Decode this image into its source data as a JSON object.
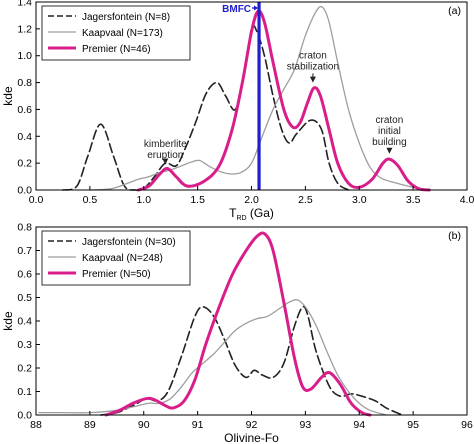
{
  "chart_data": [
    {
      "type": "line",
      "panel_label": "(a)",
      "xlabel_main": "T",
      "xlabel_sub": "RD",
      "xlabel_unit": " (Ga)",
      "ylabel": "kde",
      "xlim": [
        0.0,
        4.0
      ],
      "ylim": [
        0.0,
        1.4
      ],
      "xticks": [
        "0.0",
        "0.5",
        "1.0",
        "1.5",
        "2.0",
        "2.5",
        "3.0",
        "3.5",
        "4.0"
      ],
      "xtick_values": [
        0.0,
        0.5,
        1.0,
        1.5,
        2.0,
        2.5,
        3.0,
        3.5,
        4.0
      ],
      "yticks": [
        "0.0",
        "0.2",
        "0.4",
        "0.6",
        "0.8",
        "1.0",
        "1.2",
        "1.4"
      ],
      "ytick_values": [
        0.0,
        0.2,
        0.4,
        0.6,
        0.8,
        1.0,
        1.2,
        1.4
      ],
      "legend_position": "top-left",
      "series": [
        {
          "name": "Jagersfontein (N=8)",
          "style": "dashed",
          "color": "#222222",
          "points": [
            [
              0.25,
              0
            ],
            [
              0.38,
              0.03
            ],
            [
              0.48,
              0.25
            ],
            [
              0.6,
              0.49
            ],
            [
              0.72,
              0.25
            ],
            [
              0.82,
              0.03
            ],
            [
              0.92,
              0
            ],
            [
              1.0,
              0.01
            ],
            [
              1.1,
              0.1
            ],
            [
              1.2,
              0.2
            ],
            [
              1.3,
              0.18
            ],
            [
              1.38,
              0.3
            ],
            [
              1.48,
              0.5
            ],
            [
              1.58,
              0.72
            ],
            [
              1.68,
              0.8
            ],
            [
              1.76,
              0.7
            ],
            [
              1.85,
              0.6
            ],
            [
              1.93,
              0.85
            ],
            [
              2.0,
              1.2
            ],
            [
              2.05,
              1.18
            ],
            [
              2.12,
              1.0
            ],
            [
              2.2,
              0.7
            ],
            [
              2.28,
              0.45
            ],
            [
              2.35,
              0.35
            ],
            [
              2.42,
              0.42
            ],
            [
              2.55,
              0.52
            ],
            [
              2.65,
              0.45
            ],
            [
              2.72,
              0.2
            ],
            [
              2.8,
              0.05
            ],
            [
              2.9,
              0
            ]
          ]
        },
        {
          "name": "Kaapvaal (N=173)",
          "style": "solid",
          "color": "#9e9e9e",
          "points": [
            [
              0.5,
              0
            ],
            [
              0.7,
              0.01
            ],
            [
              0.85,
              0.05
            ],
            [
              0.95,
              0.08
            ],
            [
              1.05,
              0.1
            ],
            [
              1.15,
              0.13
            ],
            [
              1.25,
              0.15
            ],
            [
              1.35,
              0.18
            ],
            [
              1.45,
              0.21
            ],
            [
              1.52,
              0.22
            ],
            [
              1.6,
              0.18
            ],
            [
              1.7,
              0.14
            ],
            [
              1.8,
              0.12
            ],
            [
              1.9,
              0.13
            ],
            [
              2.0,
              0.2
            ],
            [
              2.1,
              0.4
            ],
            [
              2.2,
              0.6
            ],
            [
              2.3,
              0.75
            ],
            [
              2.4,
              0.9
            ],
            [
              2.5,
              1.15
            ],
            [
              2.6,
              1.33
            ],
            [
              2.66,
              1.36
            ],
            [
              2.72,
              1.25
            ],
            [
              2.8,
              0.95
            ],
            [
              2.9,
              0.6
            ],
            [
              3.0,
              0.35
            ],
            [
              3.1,
              0.17
            ],
            [
              3.2,
              0.09
            ],
            [
              3.35,
              0.05
            ],
            [
              3.5,
              0.02
            ],
            [
              3.65,
              0
            ]
          ]
        },
        {
          "name": "Premier (N=46)",
          "style": "solid-thick",
          "color": "#d91e8b",
          "points": [
            [
              0.95,
              0
            ],
            [
              1.05,
              0.03
            ],
            [
              1.15,
              0.12
            ],
            [
              1.22,
              0.16
            ],
            [
              1.3,
              0.1
            ],
            [
              1.4,
              0.03
            ],
            [
              1.55,
              0.06
            ],
            [
              1.7,
              0.18
            ],
            [
              1.82,
              0.45
            ],
            [
              1.92,
              0.82
            ],
            [
              2.0,
              1.18
            ],
            [
              2.06,
              1.33
            ],
            [
              2.12,
              1.25
            ],
            [
              2.2,
              0.95
            ],
            [
              2.3,
              0.6
            ],
            [
              2.38,
              0.47
            ],
            [
              2.45,
              0.5
            ],
            [
              2.52,
              0.65
            ],
            [
              2.58,
              0.76
            ],
            [
              2.64,
              0.7
            ],
            [
              2.72,
              0.45
            ],
            [
              2.8,
              0.2
            ],
            [
              2.9,
              0.05
            ],
            [
              3.0,
              0.02
            ],
            [
              3.12,
              0.08
            ],
            [
              3.22,
              0.2
            ],
            [
              3.28,
              0.23
            ],
            [
              3.36,
              0.18
            ],
            [
              3.45,
              0.07
            ],
            [
              3.55,
              0.01
            ],
            [
              3.65,
              0
            ]
          ]
        }
      ],
      "vline": {
        "x": 2.07,
        "label": "BMFC",
        "color": "#1f1fd0"
      },
      "annotations": [
        {
          "lines": [
            "kimberlite",
            "eruption"
          ],
          "text_x": 1.2,
          "text_y": 0.32,
          "arrow_to_y": 0.19
        },
        {
          "lines": [
            "craton",
            "stabilization"
          ],
          "text_x": 2.57,
          "text_y": 0.98,
          "arrow_to_y": 0.8
        },
        {
          "lines": [
            "craton",
            "initial",
            "building"
          ],
          "text_x": 3.28,
          "text_y": 0.5,
          "arrow_to_y": 0.27
        }
      ]
    },
    {
      "type": "line",
      "panel_label": "(b)",
      "xlabel": "Olivine-Fo",
      "ylabel": "kde",
      "xlim": [
        88,
        96
      ],
      "ylim": [
        0.0,
        0.8
      ],
      "xticks": [
        "88",
        "89",
        "90",
        "91",
        "92",
        "93",
        "94",
        "95",
        "96"
      ],
      "xtick_values": [
        88,
        89,
        90,
        91,
        92,
        93,
        94,
        95,
        96
      ],
      "yticks": [
        "0.0",
        "0.1",
        "0.2",
        "0.3",
        "0.4",
        "0.5",
        "0.6",
        "0.7",
        "0.8"
      ],
      "ytick_values": [
        0.0,
        0.1,
        0.2,
        0.3,
        0.4,
        0.5,
        0.6,
        0.7,
        0.8
      ],
      "legend_position": "top-left",
      "series": [
        {
          "name": "Jagersfontein (N=30)",
          "style": "dashed",
          "color": "#222222",
          "points": [
            [
              89.2,
              0
            ],
            [
              89.5,
              0.01
            ],
            [
              89.8,
              0.04
            ],
            [
              90.05,
              0.07
            ],
            [
              90.25,
              0.06
            ],
            [
              90.45,
              0.1
            ],
            [
              90.7,
              0.25
            ],
            [
              90.95,
              0.42
            ],
            [
              91.1,
              0.46
            ],
            [
              91.3,
              0.42
            ],
            [
              91.5,
              0.32
            ],
            [
              91.7,
              0.21
            ],
            [
              91.9,
              0.16
            ],
            [
              92.05,
              0.19
            ],
            [
              92.2,
              0.17
            ],
            [
              92.4,
              0.16
            ],
            [
              92.6,
              0.22
            ],
            [
              92.8,
              0.38
            ],
            [
              92.95,
              0.46
            ],
            [
              93.05,
              0.42
            ],
            [
              93.2,
              0.27
            ],
            [
              93.45,
              0.12
            ],
            [
              93.65,
              0.08
            ],
            [
              93.85,
              0.09
            ],
            [
              94.05,
              0.08
            ],
            [
              94.3,
              0.06
            ],
            [
              94.5,
              0.03
            ],
            [
              94.8,
              0
            ]
          ]
        },
        {
          "name": "Kaapvaal (N=248)",
          "style": "solid",
          "color": "#9e9e9e",
          "points": [
            [
              88.05,
              0.01
            ],
            [
              88.5,
              0.01
            ],
            [
              89.0,
              0.01
            ],
            [
              89.5,
              0.02
            ],
            [
              89.9,
              0.04
            ],
            [
              90.1,
              0.05
            ],
            [
              90.3,
              0.05
            ],
            [
              90.5,
              0.07
            ],
            [
              90.7,
              0.12
            ],
            [
              90.9,
              0.18
            ],
            [
              91.1,
              0.22
            ],
            [
              91.3,
              0.26
            ],
            [
              91.5,
              0.31
            ],
            [
              91.7,
              0.36
            ],
            [
              91.9,
              0.39
            ],
            [
              92.1,
              0.41
            ],
            [
              92.3,
              0.42
            ],
            [
              92.5,
              0.45
            ],
            [
              92.7,
              0.48
            ],
            [
              92.85,
              0.49
            ],
            [
              93.0,
              0.46
            ],
            [
              93.2,
              0.38
            ],
            [
              93.4,
              0.27
            ],
            [
              93.6,
              0.17
            ],
            [
              93.8,
              0.1
            ],
            [
              94.0,
              0.05
            ],
            [
              94.2,
              0.02
            ],
            [
              94.5,
              0
            ]
          ]
        },
        {
          "name": "Premier (N=50)",
          "style": "solid-thick",
          "color": "#d91e8b",
          "points": [
            [
              89.3,
              0
            ],
            [
              89.55,
              0.02
            ],
            [
              89.8,
              0.05
            ],
            [
              90.05,
              0.07
            ],
            [
              90.2,
              0.065
            ],
            [
              90.4,
              0.04
            ],
            [
              90.55,
              0.03
            ],
            [
              90.75,
              0.06
            ],
            [
              90.95,
              0.15
            ],
            [
              91.15,
              0.3
            ],
            [
              91.4,
              0.46
            ],
            [
              91.65,
              0.6
            ],
            [
              91.9,
              0.7
            ],
            [
              92.1,
              0.76
            ],
            [
              92.25,
              0.77
            ],
            [
              92.4,
              0.7
            ],
            [
              92.6,
              0.48
            ],
            [
              92.8,
              0.24
            ],
            [
              92.95,
              0.12
            ],
            [
              93.1,
              0.11
            ],
            [
              93.3,
              0.16
            ],
            [
              93.45,
              0.18
            ],
            [
              93.65,
              0.13
            ],
            [
              93.85,
              0.05
            ],
            [
              94.05,
              0.01
            ],
            [
              94.2,
              0
            ]
          ]
        }
      ]
    }
  ]
}
